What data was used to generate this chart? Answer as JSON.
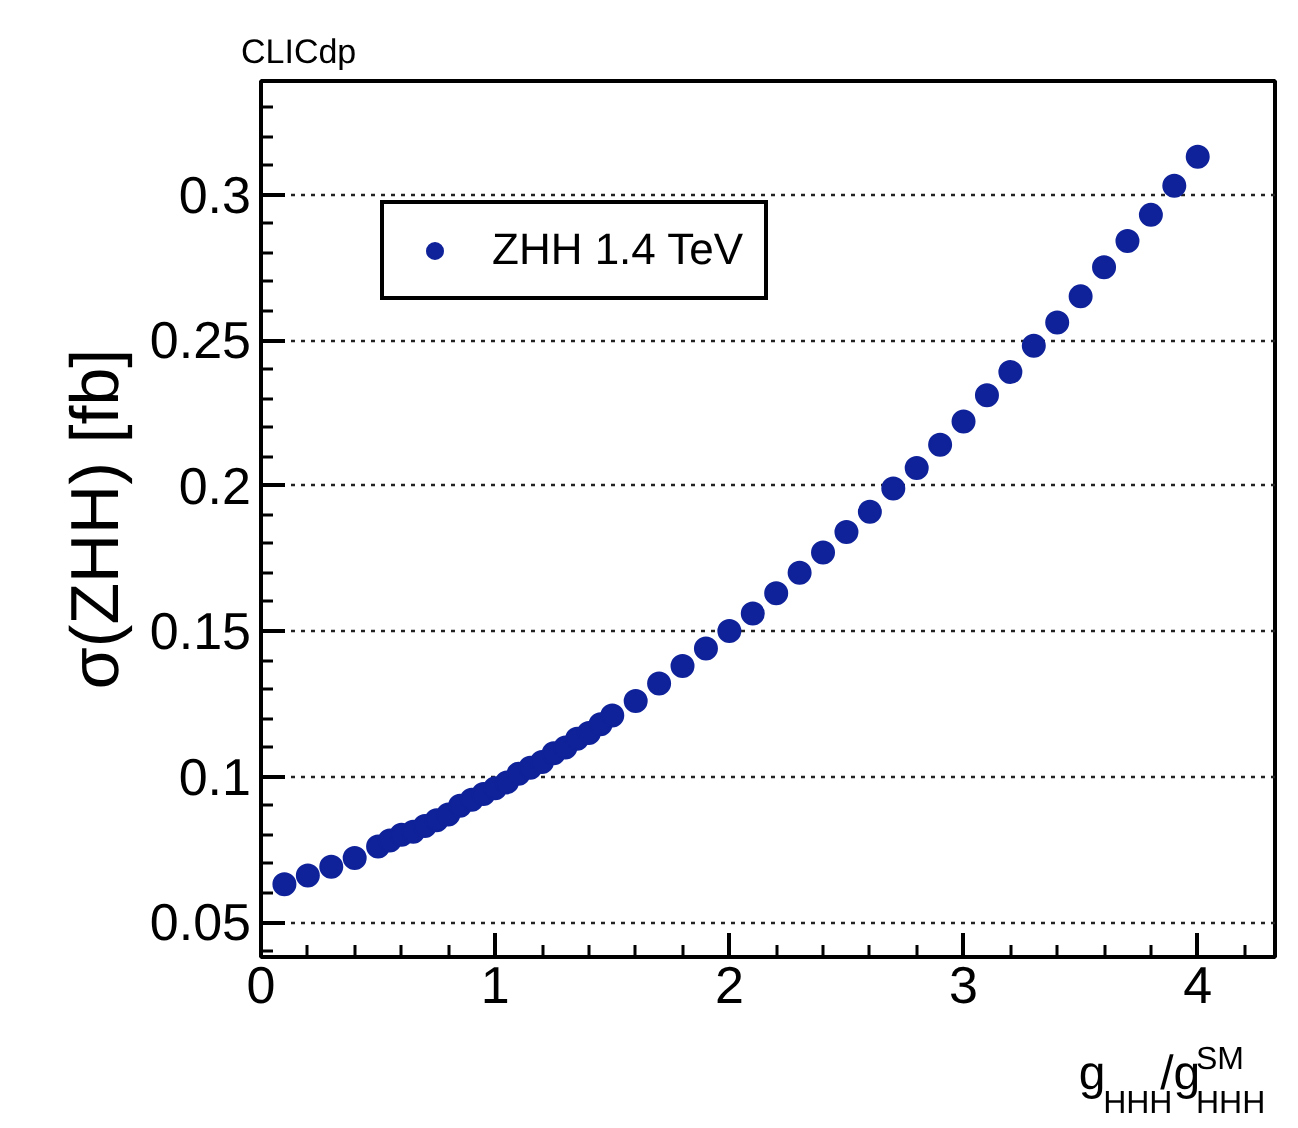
{
  "chart_data": {
    "type": "scatter",
    "title": "CLICdp",
    "xlabel": "g$_{HHH}$/g$^{SM}$$_{HHH}$",
    "ylabel": "σ(ZHH) [fb]",
    "x": [
      0.1,
      0.2,
      0.3,
      0.4,
      0.5,
      0.55,
      0.6,
      0.65,
      0.7,
      0.75,
      0.8,
      0.85,
      0.9,
      0.95,
      1.0,
      1.05,
      1.1,
      1.15,
      1.2,
      1.25,
      1.3,
      1.35,
      1.4,
      1.45,
      1.5,
      1.6,
      1.7,
      1.8,
      1.9,
      2.0,
      2.1,
      2.2,
      2.3,
      2.4,
      2.5,
      2.6,
      2.7,
      2.8,
      2.9,
      3.0,
      3.1,
      3.2,
      3.3,
      3.4,
      3.5,
      3.6,
      3.7,
      3.8,
      3.9,
      4.0
    ],
    "series": [
      {
        "name": "ZHH 1.4 TeV",
        "color": "#0f2299",
        "values": [
          0.063,
          0.066,
          0.069,
          0.072,
          0.076,
          0.078,
          0.08,
          0.081,
          0.083,
          0.085,
          0.087,
          0.09,
          0.092,
          0.094,
          0.096,
          0.098,
          0.101,
          0.103,
          0.105,
          0.108,
          0.11,
          0.113,
          0.115,
          0.118,
          0.121,
          0.126,
          0.132,
          0.138,
          0.144,
          0.15,
          0.156,
          0.163,
          0.17,
          0.177,
          0.184,
          0.191,
          0.199,
          0.206,
          0.214,
          0.222,
          0.231,
          0.239,
          0.248,
          0.256,
          0.265,
          0.275,
          0.284,
          0.293,
          0.303,
          0.313
        ]
      }
    ],
    "xlim": [
      0,
      4.33
    ],
    "ylim": [
      0.038,
      0.339
    ],
    "xticks": [
      0,
      1,
      2,
      3,
      4
    ],
    "yticks": [
      {
        "value": 0.05,
        "label": "0.05"
      },
      {
        "value": 0.1,
        "label": "0.1"
      },
      {
        "value": 0.15,
        "label": "0.15"
      },
      {
        "value": 0.2,
        "label": "0.2"
      },
      {
        "value": 0.25,
        "label": "0.25"
      },
      {
        "value": 0.3,
        "label": "0.3"
      }
    ],
    "grid": "y",
    "legend": "top left",
    "marker": "circle"
  }
}
